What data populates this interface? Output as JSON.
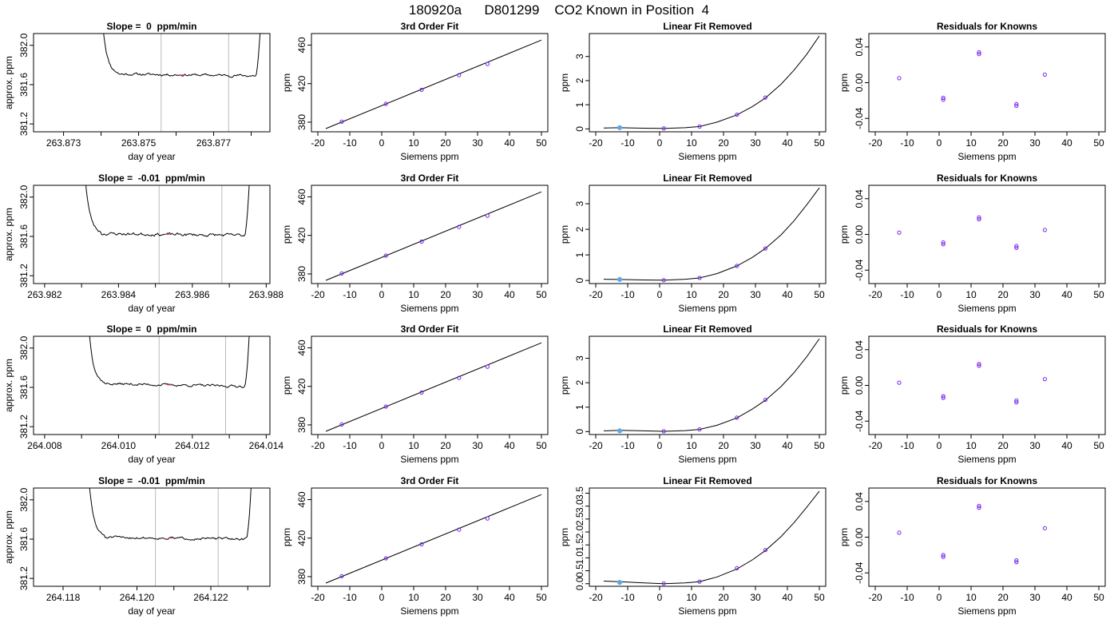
{
  "title": "180920a      D801299    CO2 Known in Position  4",
  "colors": {
    "points": "#7722ee",
    "first_point": "#5fa8e8",
    "trace_marker": "#ff4477",
    "window": "#bbbbbb",
    "line": "#000000"
  },
  "chart_data": [
    {
      "type": "line",
      "row": 0,
      "col": 0,
      "title": "Slope =  0  ppm/min",
      "xlabel": "day of year",
      "ylabel": "approx. ppm",
      "xlim": [
        263.8722,
        263.8785
      ],
      "ylim": [
        381.12,
        382.12
      ],
      "xticks": [
        263.873,
        263.874,
        263.875,
        263.876,
        263.877,
        263.878
      ],
      "xtick_labels": [
        "263.873",
        "",
        "263.875",
        "",
        "263.877",
        ""
      ],
      "yticks": [
        381.2,
        381.6,
        382.0
      ],
      "ytick_labels": [
        "381.2",
        "381.6",
        "382.0"
      ],
      "trace": {
        "x0": 263.87405,
        "x1": 263.87825,
        "start": 382.2,
        "plateau": 381.71,
        "drift": -0.02,
        "noise": 0.01,
        "end": 382.2,
        "seed": 11
      },
      "window": [
        263.8756,
        263.8774
      ]
    },
    {
      "type": "line",
      "row": 1,
      "col": 0,
      "title": "Slope =  -0.01  ppm/min",
      "xlabel": "day of year",
      "ylabel": "approx. ppm",
      "xlim": [
        263.9817,
        263.9881
      ],
      "ylim": [
        381.12,
        382.12
      ],
      "xticks": [
        263.982,
        263.983,
        263.984,
        263.985,
        263.986,
        263.987,
        263.988
      ],
      "xtick_labels": [
        "263.982",
        "",
        "263.984",
        "",
        "263.986",
        "",
        "263.988"
      ],
      "yticks": [
        381.2,
        381.6,
        382.0
      ],
      "ytick_labels": [
        "381.2",
        "381.6",
        "382.0"
      ],
      "trace": {
        "x0": 263.9831,
        "x1": 263.98755,
        "start": 382.2,
        "plateau": 381.63,
        "drift": -0.02,
        "noise": 0.012,
        "end": 382.2,
        "seed": 23
      },
      "window": [
        263.9851,
        263.9868
      ]
    },
    {
      "type": "line",
      "row": 2,
      "col": 0,
      "title": "Slope =  0  ppm/min",
      "xlabel": "day of year",
      "ylabel": "approx. ppm",
      "xlim": [
        264.0077,
        264.0141
      ],
      "ylim": [
        381.12,
        382.12
      ],
      "xticks": [
        264.008,
        264.009,
        264.01,
        264.011,
        264.012,
        264.013,
        264.014
      ],
      "xtick_labels": [
        "264.008",
        "",
        "264.010",
        "",
        "264.012",
        "",
        "264.014"
      ],
      "yticks": [
        381.2,
        381.6,
        382.0
      ],
      "ytick_labels": [
        "381.2",
        "381.6",
        "382.0"
      ],
      "trace": {
        "x0": 264.0092,
        "x1": 264.01355,
        "start": 382.2,
        "plateau": 381.64,
        "drift": -0.03,
        "noise": 0.01,
        "end": 382.2,
        "seed": 37
      },
      "window": [
        264.0111,
        264.0129
      ]
    },
    {
      "type": "line",
      "row": 3,
      "col": 0,
      "title": "Slope =  -0.01  ppm/min",
      "xlabel": "day of year",
      "ylabel": "approx. ppm",
      "xlim": [
        264.1172,
        264.1236
      ],
      "ylim": [
        381.12,
        382.12
      ],
      "xticks": [
        264.118,
        264.119,
        264.12,
        264.121,
        264.122,
        264.123
      ],
      "xtick_labels": [
        "264.118",
        "",
        "264.120",
        "",
        "264.122",
        ""
      ],
      "yticks": [
        381.2,
        381.6,
        382.0
      ],
      "ytick_labels": [
        "381.2",
        "381.6",
        "382.0"
      ],
      "trace": {
        "x0": 264.1187,
        "x1": 264.1231,
        "start": 382.2,
        "plateau": 381.62,
        "drift": -0.02,
        "noise": 0.01,
        "end": 382.2,
        "seed": 51
      },
      "window": [
        264.1205,
        264.1222
      ]
    },
    {
      "type": "scatter",
      "row": 0,
      "col": 1,
      "title": "3rd Order Fit",
      "xlabel": "Siemens ppm",
      "ylabel": "ppm",
      "xlim": [
        -22,
        52
      ],
      "ylim": [
        370,
        472
      ],
      "xticks": [
        -20,
        -10,
        0,
        10,
        20,
        30,
        40,
        50
      ],
      "xtick_labels": [
        "-20",
        "-10",
        "0",
        "10",
        "20",
        "30",
        "40",
        "50"
      ],
      "yticks": [
        380,
        420,
        460
      ],
      "ytick_labels": [
        "380",
        "420",
        "460"
      ],
      "fit_line": {
        "x": [
          -17.5,
          50
        ],
        "y": [
          373.3,
          465.2
        ]
      },
      "points": {
        "x": [
          -12.5,
          1.3,
          12.5,
          24.2,
          33.1
        ],
        "y": [
          380.5,
          399.0,
          413.6,
          428.8,
          440.4
        ]
      }
    },
    {
      "type": "scatter",
      "row": 1,
      "col": 1,
      "title": "3rd Order Fit",
      "xlabel": "Siemens ppm",
      "ylabel": "ppm",
      "xlim": [
        -22,
        52
      ],
      "ylim": [
        370,
        472
      ],
      "xticks": [
        -20,
        -10,
        0,
        10,
        20,
        30,
        40,
        50
      ],
      "xtick_labels": [
        "-20",
        "-10",
        "0",
        "10",
        "20",
        "30",
        "40",
        "50"
      ],
      "yticks": [
        380,
        420,
        460
      ],
      "ytick_labels": [
        "380",
        "420",
        "460"
      ],
      "fit_line": {
        "x": [
          -17.5,
          50
        ],
        "y": [
          373.3,
          465.2
        ]
      },
      "points": {
        "x": [
          -12.5,
          1.3,
          12.5,
          24.2,
          33.1
        ],
        "y": [
          380.5,
          399.0,
          413.6,
          428.8,
          440.4
        ]
      }
    },
    {
      "type": "scatter",
      "row": 2,
      "col": 1,
      "title": "3rd Order Fit",
      "xlabel": "Siemens ppm",
      "ylabel": "ppm",
      "xlim": [
        -22,
        52
      ],
      "ylim": [
        370,
        472
      ],
      "xticks": [
        -20,
        -10,
        0,
        10,
        20,
        30,
        40,
        50
      ],
      "xtick_labels": [
        "-20",
        "-10",
        "0",
        "10",
        "20",
        "30",
        "40",
        "50"
      ],
      "yticks": [
        380,
        420,
        460
      ],
      "ytick_labels": [
        "380",
        "420",
        "460"
      ],
      "fit_line": {
        "x": [
          -17.5,
          50
        ],
        "y": [
          373.3,
          465.2
        ]
      },
      "points": {
        "x": [
          -12.5,
          1.3,
          12.5,
          24.2,
          33.1
        ],
        "y": [
          380.5,
          399.0,
          413.6,
          428.8,
          440.4
        ]
      }
    },
    {
      "type": "scatter",
      "row": 3,
      "col": 1,
      "title": "3rd Order Fit",
      "xlabel": "Siemens ppm",
      "ylabel": "ppm",
      "xlim": [
        -22,
        52
      ],
      "ylim": [
        370,
        472
      ],
      "xticks": [
        -20,
        -10,
        0,
        10,
        20,
        30,
        40,
        50
      ],
      "xtick_labels": [
        "-20",
        "-10",
        "0",
        "10",
        "20",
        "30",
        "40",
        "50"
      ],
      "yticks": [
        380,
        420,
        460
      ],
      "ytick_labels": [
        "380",
        "420",
        "460"
      ],
      "fit_line": {
        "x": [
          -17.5,
          50
        ],
        "y": [
          373.3,
          465.2
        ]
      },
      "points": {
        "x": [
          -12.5,
          1.3,
          12.5,
          24.2,
          33.1
        ],
        "y": [
          380.5,
          399.0,
          413.6,
          428.8,
          440.4
        ]
      }
    },
    {
      "type": "scatter",
      "row": 0,
      "col": 2,
      "title": "Linear Fit Removed",
      "xlabel": "Siemens ppm",
      "ylabel": "ppm",
      "xlim": [
        -22,
        52
      ],
      "ylim": [
        -0.12,
        3.95
      ],
      "xticks": [
        -20,
        -10,
        0,
        10,
        20,
        30,
        40,
        50
      ],
      "xtick_labels": [
        "-20",
        "-10",
        "0",
        "10",
        "20",
        "30",
        "40",
        "50"
      ],
      "yticks": [
        0,
        1,
        2,
        3
      ],
      "ytick_labels": [
        "0",
        "1",
        "2",
        "3"
      ],
      "curve": {
        "x": [
          -17.5,
          -12.5,
          -5,
          1.3,
          8,
          12.5,
          18,
          24.2,
          29,
          33.1,
          38,
          42,
          46,
          50
        ],
        "y": [
          0.04,
          0.05,
          0.03,
          0.02,
          0.05,
          0.1,
          0.28,
          0.58,
          0.92,
          1.28,
          1.85,
          2.42,
          3.08,
          3.85
        ]
      },
      "points": {
        "x": [
          -12.5,
          1.3,
          12.5,
          24.2,
          33.1
        ],
        "y": [
          0.05,
          0.02,
          0.1,
          0.59,
          1.3
        ]
      }
    },
    {
      "type": "scatter",
      "row": 1,
      "col": 2,
      "title": "Linear Fit Removed",
      "xlabel": "Siemens ppm",
      "ylabel": "ppm",
      "xlim": [
        -22,
        52
      ],
      "ylim": [
        -0.12,
        3.72
      ],
      "xticks": [
        -20,
        -10,
        0,
        10,
        20,
        30,
        40,
        50
      ],
      "xtick_labels": [
        "-20",
        "-10",
        "0",
        "10",
        "20",
        "30",
        "40",
        "50"
      ],
      "yticks": [
        0,
        1,
        2,
        3
      ],
      "ytick_labels": [
        "0",
        "1",
        "2",
        "3"
      ],
      "curve": {
        "x": [
          -17.5,
          -12.5,
          -5,
          1.3,
          8,
          12.5,
          18,
          24.2,
          29,
          33.1,
          38,
          42,
          46,
          50
        ],
        "y": [
          0.05,
          0.04,
          0.02,
          0.01,
          0.05,
          0.1,
          0.27,
          0.57,
          0.9,
          1.25,
          1.78,
          2.32,
          2.95,
          3.62
        ]
      },
      "points": {
        "x": [
          -12.5,
          1.3,
          12.5,
          24.2,
          33.1
        ],
        "y": [
          0.04,
          0.01,
          0.1,
          0.57,
          1.25
        ]
      }
    },
    {
      "type": "scatter",
      "row": 2,
      "col": 2,
      "title": "Linear Fit Removed",
      "xlabel": "Siemens ppm",
      "ylabel": "ppm",
      "xlim": [
        -22,
        52
      ],
      "ylim": [
        -0.12,
        3.9
      ],
      "xticks": [
        -20,
        -10,
        0,
        10,
        20,
        30,
        40,
        50
      ],
      "xtick_labels": [
        "-20",
        "-10",
        "0",
        "10",
        "20",
        "30",
        "40",
        "50"
      ],
      "yticks": [
        0,
        1,
        2,
        3
      ],
      "ytick_labels": [
        "0",
        "1",
        "2",
        "3"
      ],
      "curve": {
        "x": [
          -17.5,
          -12.5,
          -5,
          1.3,
          8,
          12.5,
          18,
          24.2,
          29,
          33.1,
          38,
          42,
          46,
          50
        ],
        "y": [
          0.03,
          0.05,
          0.03,
          0.01,
          0.04,
          0.09,
          0.26,
          0.56,
          0.92,
          1.28,
          1.84,
          2.4,
          3.05,
          3.8
        ]
      },
      "points": {
        "x": [
          -12.5,
          1.3,
          12.5,
          24.2,
          33.1
        ],
        "y": [
          0.03,
          0.01,
          0.09,
          0.57,
          1.3
        ]
      }
    },
    {
      "type": "scatter",
      "row": 3,
      "col": 2,
      "title": "Linear Fit Removed",
      "xlabel": "Siemens ppm",
      "ylabel": "ppm",
      "xlim": [
        -22,
        52
      ],
      "ylim": [
        -0.1,
        3.7
      ],
      "xticks": [
        -20,
        -10,
        0,
        10,
        20,
        30,
        40,
        50
      ],
      "xtick_labels": [
        "-20",
        "-10",
        "0",
        "10",
        "20",
        "30",
        "40",
        "50"
      ],
      "yticks": [
        0,
        1,
        2,
        3
      ],
      "ytick_labels": [
        "0.0",
        "1.0",
        "2.0",
        "3.0"
      ],
      "yticks_minor": [
        0.5,
        1.5,
        2.5,
        3.5
      ],
      "ytick_minor_labels": [
        "0.5",
        "1.5",
        "2.5",
        "3.5"
      ],
      "curve": {
        "x": [
          -17.5,
          -12.5,
          -5,
          1.3,
          8,
          12.5,
          18,
          24.2,
          29,
          33.1,
          38,
          42,
          46,
          50
        ],
        "y": [
          0.1,
          0.08,
          0.03,
          0.0,
          0.03,
          0.08,
          0.26,
          0.57,
          0.92,
          1.28,
          1.82,
          2.35,
          2.95,
          3.58
        ]
      },
      "points": {
        "x": [
          -12.5,
          1.3,
          12.5,
          24.2,
          33.1
        ],
        "y": [
          0.05,
          0.01,
          0.08,
          0.6,
          1.3
        ]
      }
    },
    {
      "type": "scatter",
      "row": 0,
      "col": 3,
      "title": "Residuals for Knowns",
      "xlabel": "Siemens ppm",
      "ylabel": "ppm",
      "xlim": [
        -22,
        52
      ],
      "ylim": [
        -0.055,
        0.055
      ],
      "xticks": [
        -20,
        -10,
        0,
        10,
        20,
        30,
        40,
        50
      ],
      "xtick_labels": [
        "-20",
        "-10",
        "0",
        "10",
        "20",
        "30",
        "40",
        "50"
      ],
      "yticks": [
        -0.04,
        0.0,
        0.04
      ],
      "ytick_labels": [
        "-0.04",
        "0.00",
        "0.04"
      ],
      "points": {
        "x": [
          -12.5,
          1.3,
          1.3,
          12.5,
          12.5,
          24.2,
          24.2,
          33.1
        ],
        "y": [
          0.005,
          -0.017,
          -0.019,
          0.034,
          0.032,
          -0.024,
          -0.026,
          0.009
        ]
      }
    },
    {
      "type": "scatter",
      "row": 1,
      "col": 3,
      "title": "Residuals for Knowns",
      "xlabel": "Siemens ppm",
      "ylabel": "ppm",
      "xlim": [
        -22,
        52
      ],
      "ylim": [
        -0.055,
        0.055
      ],
      "xticks": [
        -20,
        -10,
        0,
        10,
        20,
        30,
        40,
        50
      ],
      "xtick_labels": [
        "-20",
        "-10",
        "0",
        "10",
        "20",
        "30",
        "40",
        "50"
      ],
      "yticks": [
        -0.04,
        0.0,
        0.04
      ],
      "ytick_labels": [
        "-0.04",
        "0.00",
        "0.04"
      ],
      "points": {
        "x": [
          -12.5,
          1.3,
          1.3,
          12.5,
          12.5,
          24.2,
          24.2,
          33.1
        ],
        "y": [
          0.002,
          -0.009,
          -0.011,
          0.019,
          0.017,
          -0.013,
          -0.015,
          0.005
        ]
      }
    },
    {
      "type": "scatter",
      "row": 2,
      "col": 3,
      "title": "Residuals for Knowns",
      "xlabel": "Siemens ppm",
      "ylabel": "ppm",
      "xlim": [
        -22,
        52
      ],
      "ylim": [
        -0.055,
        0.055
      ],
      "xticks": [
        -20,
        -10,
        0,
        10,
        20,
        30,
        40,
        50
      ],
      "xtick_labels": [
        "-20",
        "-10",
        "0",
        "10",
        "20",
        "30",
        "40",
        "50"
      ],
      "yticks": [
        -0.04,
        0.0,
        0.04
      ],
      "ytick_labels": [
        "-0.04",
        "0.00",
        "0.04"
      ],
      "points": {
        "x": [
          -12.5,
          1.3,
          1.3,
          12.5,
          12.5,
          24.2,
          24.2,
          33.1
        ],
        "y": [
          0.003,
          -0.012,
          -0.014,
          0.024,
          0.022,
          -0.017,
          -0.019,
          0.007
        ]
      }
    },
    {
      "type": "scatter",
      "row": 3,
      "col": 3,
      "title": "Residuals for Knowns",
      "xlabel": "Siemens ppm",
      "ylabel": "ppm",
      "xlim": [
        -22,
        52
      ],
      "ylim": [
        -0.055,
        0.055
      ],
      "xticks": [
        -20,
        -10,
        0,
        10,
        20,
        30,
        40,
        50
      ],
      "xtick_labels": [
        "-20",
        "-10",
        "0",
        "10",
        "20",
        "30",
        "40",
        "50"
      ],
      "yticks": [
        -0.04,
        0.0,
        0.04
      ],
      "ytick_labels": [
        "-0.04",
        "0.00",
        "0.04"
      ],
      "points": {
        "x": [
          -12.5,
          1.3,
          1.3,
          12.5,
          12.5,
          24.2,
          24.2,
          33.1
        ],
        "y": [
          0.005,
          -0.02,
          -0.022,
          0.035,
          0.033,
          -0.026,
          -0.028,
          0.01
        ]
      }
    }
  ]
}
